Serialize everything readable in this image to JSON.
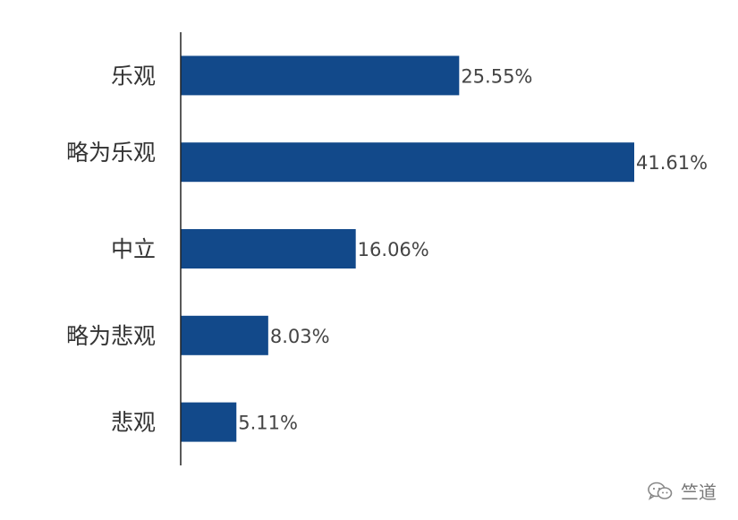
{
  "chart_data": {
    "type": "bar",
    "orientation": "horizontal",
    "categories": [
      "乐观",
      "略为乐观",
      "中立",
      "略为悲观",
      "悲观"
    ],
    "values": [
      25.55,
      41.61,
      16.06,
      8.03,
      5.11
    ],
    "value_labels": [
      "25.55%",
      "41.61%",
      "16.06%",
      "8.03%",
      "5.11%"
    ],
    "xlim": [
      0,
      50
    ],
    "grid": false,
    "legend": "none",
    "title": "",
    "xlabel": "",
    "ylabel": ""
  },
  "colors": {
    "bar": "#12498A",
    "axis": "#222222"
  },
  "watermark": {
    "icon": "wechat-icon",
    "text": "竺道"
  }
}
